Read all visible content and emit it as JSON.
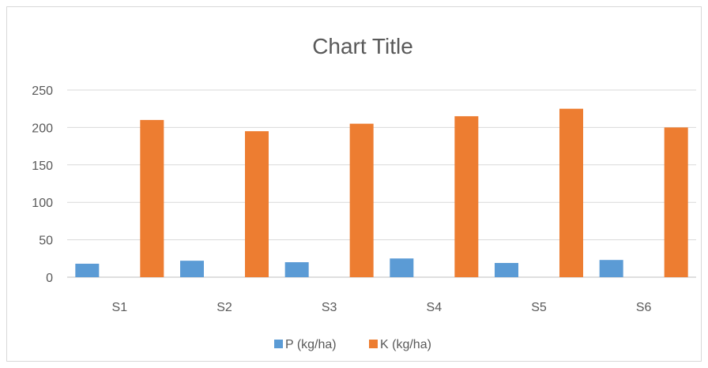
{
  "chart_data": {
    "type": "bar",
    "title": "Chart Title",
    "categories": [
      "S1",
      "S2",
      "S3",
      "S4",
      "S5",
      "S6"
    ],
    "series": [
      {
        "name": "P (kg/ha)",
        "color": "#5b9bd5",
        "values": [
          18,
          22,
          20,
          25,
          19,
          23
        ]
      },
      {
        "name": "K (kg/ha)",
        "color": "#ed7d31",
        "values": [
          210,
          195,
          205,
          215,
          225,
          200
        ]
      }
    ],
    "ylim": [
      0,
      250
    ],
    "yticks": [
      0,
      50,
      100,
      150,
      200,
      250
    ],
    "grid": true,
    "legend": "bottom"
  }
}
